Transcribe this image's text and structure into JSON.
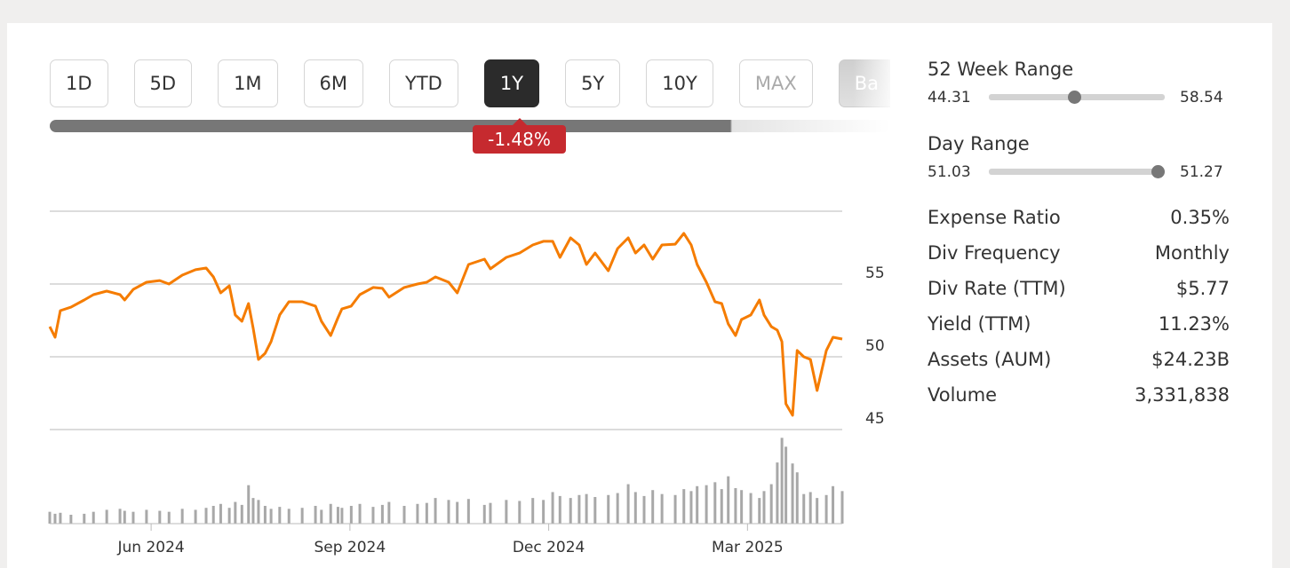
{
  "range_buttons": [
    "1D",
    "5D",
    "1M",
    "6M",
    "YTD",
    "1Y",
    "5Y",
    "10Y",
    "MAX",
    "Ba"
  ],
  "selected_index": 5,
  "disabled_index": 8,
  "change_badge": "-1.48%",
  "chart_data": {
    "type": "line",
    "x": [
      4.47,
      4.55,
      4.63,
      4.79,
      4.99,
      5.13,
      5.33,
      5.53,
      5.6,
      5.73,
      5.93,
      6.13,
      6.27,
      6.47,
      6.67,
      6.83,
      6.94,
      7.05,
      7.18,
      7.27,
      7.37,
      7.47,
      7.54,
      7.62,
      7.72,
      7.81,
      7.94,
      8.08,
      8.28,
      8.48,
      8.57,
      8.71,
      8.82,
      8.88,
      9.02,
      9.15,
      9.35,
      9.49,
      9.59,
      9.82,
      10.02,
      10.16,
      10.29,
      10.49,
      10.62,
      10.79,
      11.03,
      11.12,
      11.36,
      11.56,
      11.76,
      11.92,
      12.06,
      12.17,
      12.33,
      12.46,
      12.57,
      12.7,
      12.9,
      13.04,
      13.2,
      13.31,
      13.44,
      13.57,
      13.71,
      13.91,
      14.04,
      14.15,
      14.24,
      14.38,
      14.51,
      14.61,
      14.71,
      14.82,
      14.91,
      15.05,
      15.18,
      15.25,
      15.36,
      15.45,
      15.52,
      15.58,
      15.68,
      15.75,
      15.85,
      15.95,
      16.05,
      16.19,
      16.29,
      16.43
    ],
    "series": [
      {
        "color": "#f57c00",
        "values": [
          52.07,
          51.34,
          53.17,
          53.41,
          53.9,
          54.27,
          54.51,
          54.27,
          53.9,
          54.63,
          55.12,
          55.24,
          55.0,
          55.61,
          55.98,
          56.1,
          55.49,
          54.39,
          54.88,
          52.87,
          52.44,
          53.66,
          51.95,
          49.82,
          50.24,
          51.04,
          52.87,
          53.78,
          53.78,
          53.48,
          52.44,
          51.46,
          52.68,
          53.29,
          53.48,
          54.27,
          54.76,
          54.7,
          54.09,
          54.76,
          55.0,
          55.12,
          55.49,
          55.12,
          54.39,
          56.34,
          56.71,
          56.04,
          56.83,
          57.13,
          57.68,
          57.93,
          57.93,
          56.83,
          58.17,
          57.68,
          56.34,
          57.13,
          55.91,
          57.44,
          58.17,
          57.13,
          57.68,
          56.71,
          57.68,
          57.74,
          58.48,
          57.68,
          56.34,
          55.12,
          53.78,
          53.66,
          52.26,
          51.46,
          52.56,
          52.87,
          53.9,
          52.87,
          52.07,
          51.83,
          51.04,
          46.77,
          45.98,
          50.43,
          50.0,
          49.82,
          47.68,
          50.43,
          51.34,
          51.22
        ]
      }
    ],
    "volume": {
      "color": "#a8a8a8",
      "lim": [
        0,
        9
      ],
      "values": [
        1.2,
        1.0,
        1.1,
        0.9,
        1.0,
        1.2,
        1.4,
        1.5,
        1.3,
        1.2,
        1.4,
        1.3,
        1.2,
        1.5,
        1.4,
        1.6,
        1.8,
        2.0,
        1.6,
        2.2,
        1.9,
        3.9,
        2.6,
        2.4,
        1.8,
        1.5,
        1.7,
        1.5,
        1.6,
        1.8,
        1.4,
        2.0,
        1.7,
        1.6,
        1.8,
        2.0,
        1.7,
        1.9,
        2.2,
        1.8,
        2.0,
        2.1,
        2.6,
        2.4,
        2.2,
        2.5,
        1.9,
        2.1,
        2.4,
        2.3,
        2.6,
        2.4,
        3.2,
        2.8,
        2.6,
        2.9,
        3.0,
        2.7,
        2.9,
        3.1,
        4.0,
        3.2,
        2.8,
        3.4,
        3.0,
        2.9,
        3.5,
        3.3,
        3.8,
        3.9,
        4.2,
        3.5,
        4.8,
        3.6,
        3.4,
        3.1,
        2.6,
        3.3,
        4.0,
        6.2,
        8.7,
        7.8,
        6.1,
        5.2,
        3.0,
        3.2,
        2.6,
        2.9,
        3.8,
        3.3
      ]
    },
    "xlim": [
      4.47,
      16.43
    ],
    "xticks": [
      {
        "value": 6,
        "label": "Jun 2024"
      },
      {
        "value": 9,
        "label": "Sep 2024"
      },
      {
        "value": 12,
        "label": "Dec 2024"
      },
      {
        "value": 15,
        "label": "Mar 2025"
      }
    ],
    "ylim": [
      45,
      60
    ],
    "yticks": [
      45,
      50,
      55
    ],
    "grid": true
  },
  "ranges": [
    {
      "label": "52 Week Range",
      "low": 44.31,
      "high": 58.54,
      "marker": 51.2
    },
    {
      "label": "Day Range",
      "low": 51.03,
      "high": 51.27,
      "marker": 51.26
    }
  ],
  "stats": [
    [
      "Expense Ratio",
      "0.35%"
    ],
    [
      "Div Frequency",
      "Monthly"
    ],
    [
      "Div Rate (TTM)",
      "$5.77"
    ],
    [
      "Yield (TTM)",
      "11.23%"
    ],
    [
      "Assets (AUM)",
      "$24.23B"
    ],
    [
      "Volume",
      "3,331,838"
    ]
  ]
}
